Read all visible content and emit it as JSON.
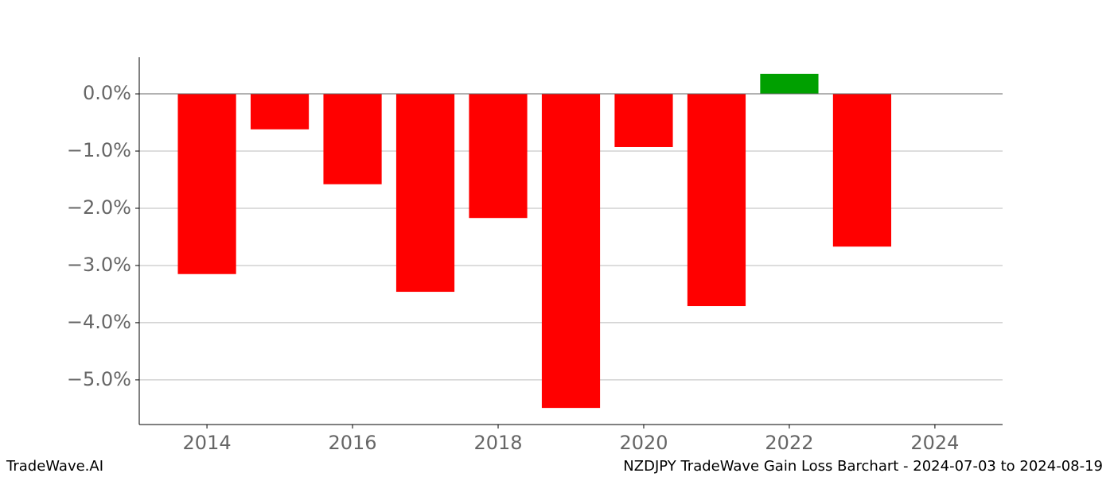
{
  "chart_data": {
    "type": "bar",
    "source": "TradeWave.AI",
    "caption": "NZDJPY TradeWave Gain Loss Barchart - 2024-07-03 to 2024-08-19",
    "x": [
      2014,
      2015,
      2016,
      2017,
      2018,
      2019,
      2020,
      2021,
      2022,
      2023
    ],
    "values": [
      -3.15,
      -0.62,
      -1.58,
      -3.46,
      -2.17,
      -5.49,
      -0.93,
      -3.71,
      0.35,
      -2.67
    ],
    "color_positive": "#00a000",
    "color_negative": "#ff0000",
    "xlim": [
      2013.07,
      2024.93
    ],
    "xticks": [
      2014,
      2016,
      2018,
      2020,
      2022,
      2024
    ],
    "ylim": [
      -5.78,
      0.64
    ],
    "yticks": [
      {
        "value": 0,
        "label": "0.0%"
      },
      {
        "value": -1,
        "label": "−1.0%"
      },
      {
        "value": -2,
        "label": "−2.0%"
      },
      {
        "value": -3,
        "label": "−3.0%"
      },
      {
        "value": -4,
        "label": "−4.0%"
      },
      {
        "value": -5,
        "label": "−5.0%"
      }
    ],
    "grid": true
  }
}
